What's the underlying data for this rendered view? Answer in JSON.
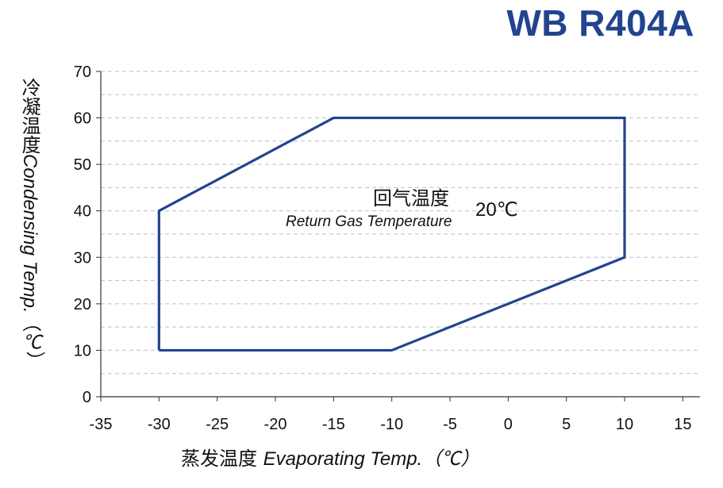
{
  "title": "WB R404A",
  "chart_data": {
    "type": "line",
    "title": "WB R404A",
    "xlabel_cn": "蒸发温度",
    "xlabel_en": "Evaporating Temp.（℃）",
    "ylabel_cn": "冷凝温度",
    "ylabel_en": "Condensing Temp.（℃）",
    "xlim": [
      -35,
      15
    ],
    "ylim": [
      0,
      70
    ],
    "x_ticks": [
      -35,
      -30,
      -25,
      -20,
      -15,
      -10,
      -5,
      0,
      5,
      10,
      15
    ],
    "y_ticks": [
      0,
      10,
      20,
      30,
      40,
      50,
      60,
      70
    ],
    "grid": "horizontal dashed",
    "series": [
      {
        "color": "#22448f",
        "points": [
          [
            -30,
            10
          ],
          [
            -10,
            10
          ],
          [
            10,
            30
          ],
          [
            10,
            60
          ],
          [
            -15,
            60
          ],
          [
            -30,
            40
          ],
          [
            -30,
            10
          ]
        ]
      }
    ],
    "annotation": {
      "label_cn": "回气温度",
      "label_en": "Return Gas Temperature",
      "value": "20℃"
    }
  }
}
